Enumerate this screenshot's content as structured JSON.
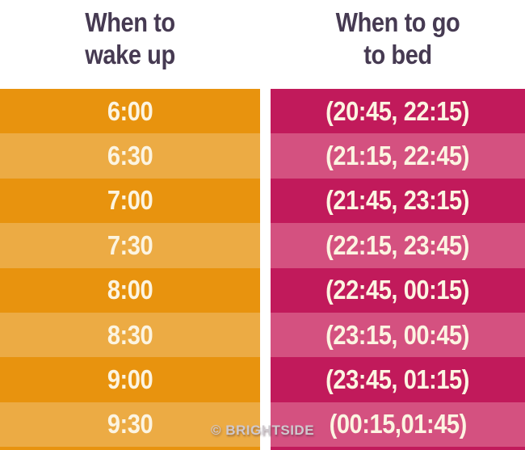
{
  "headers": {
    "wake": {
      "line1": "When to",
      "line2": "wake up"
    },
    "bed": {
      "line1": "When to go",
      "line2": "to bed"
    }
  },
  "rows": [
    {
      "wake": "6:00",
      "bed": "(20:45, 22:15)"
    },
    {
      "wake": "6:30",
      "bed": "(21:15, 22:45)"
    },
    {
      "wake": "7:00",
      "bed": "(21:45, 23:15)"
    },
    {
      "wake": "7:30",
      "bed": "(22:15, 23:45)"
    },
    {
      "wake": "8:00",
      "bed": "(22:45, 00:15)"
    },
    {
      "wake": "8:30",
      "bed": "(23:15, 00:45)"
    },
    {
      "wake": "9:00",
      "bed": "(23:45, 01:15)"
    },
    {
      "wake": "9:30",
      "bed": "(00:15,01:45)"
    }
  ],
  "watermark": "© BRIGHTSIDE",
  "colors": {
    "wake_dark": "#E8930E",
    "wake_light": "#ECAB44",
    "bed_dark": "#C11A5B",
    "bed_light": "#D45180",
    "header_text": "#463A52",
    "cell_text": "#FCF4E1",
    "watermark": "#CFC9CE"
  },
  "chart_data": {
    "type": "table",
    "title": "",
    "columns": [
      "When to wake up",
      "When to go to bed"
    ],
    "rows": [
      [
        "6:00",
        "(20:45, 22:15)"
      ],
      [
        "6:30",
        "(21:15, 22:45)"
      ],
      [
        "7:00",
        "(21:45, 23:15)"
      ],
      [
        "7:30",
        "(22:15, 23:45)"
      ],
      [
        "8:00",
        "(22:45, 00:15)"
      ],
      [
        "8:30",
        "(23:15, 00:45)"
      ],
      [
        "9:00",
        "(23:45, 01:15)"
      ],
      [
        "9:30",
        "(00:15,01:45)"
      ]
    ],
    "layout": {
      "grid": false,
      "legend": "none",
      "row_striping": "alternating dark/light"
    }
  }
}
